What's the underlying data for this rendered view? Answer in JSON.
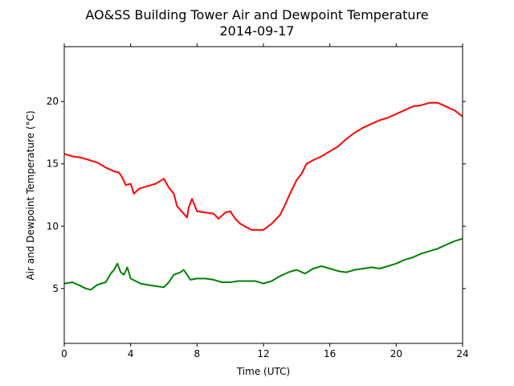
{
  "chart_data": {
    "type": "line",
    "title": "AO&SS Building Tower Air and Dewpoint Temperature",
    "subtitle": "2014-09-17",
    "xlabel": "Time (UTC)",
    "ylabel": "Air and Dewpoint Temperature (°C)",
    "xlim": [
      0,
      24
    ],
    "ylim": [
      0.6,
      24.4
    ],
    "xticks": [
      0,
      4,
      8,
      12,
      16,
      20,
      24
    ],
    "yticks": [
      5,
      10,
      15,
      20
    ],
    "grid": false,
    "legend": "none",
    "series": [
      {
        "color": "#ff0000",
        "x": [
          0,
          0.5,
          1,
          1.5,
          2,
          2.5,
          3,
          3.3,
          3.5,
          3.7,
          4,
          4.2,
          4.5,
          5,
          5.5,
          6,
          6.3,
          6.6,
          6.8,
          7,
          7.2,
          7.4,
          7.5,
          7.7,
          8,
          8.5,
          9,
          9.3,
          9.7,
          10,
          10.3,
          10.6,
          11,
          11.3,
          11.6,
          12,
          12.5,
          13,
          13.3,
          13.6,
          14,
          14.3,
          14.6,
          15,
          15.5,
          16,
          16.5,
          17,
          17.5,
          18,
          18.5,
          19,
          19.5,
          20,
          20.5,
          21,
          21.5,
          22,
          22.5,
          23,
          23.5,
          24
        ],
        "values": [
          15.8,
          15.6,
          15.5,
          15.3,
          15.1,
          14.7,
          14.4,
          14.3,
          13.9,
          13.3,
          13.4,
          12.6,
          13.0,
          13.2,
          13.4,
          13.8,
          13.1,
          12.6,
          11.6,
          11.3,
          11.0,
          10.7,
          11.5,
          12.2,
          11.2,
          11.1,
          11.0,
          10.6,
          11.1,
          11.2,
          10.6,
          10.2,
          9.9,
          9.7,
          9.7,
          9.7,
          10.2,
          10.9,
          11.7,
          12.6,
          13.7,
          14.2,
          15.0,
          15.3,
          15.6,
          16.0,
          16.4,
          17.0,
          17.5,
          17.9,
          18.2,
          18.5,
          18.7,
          19.0,
          19.3,
          19.6,
          19.7,
          19.9,
          19.9,
          19.6,
          19.3,
          18.8
        ]
      },
      {
        "color": "#008000",
        "x": [
          0,
          0.5,
          1,
          1.3,
          1.6,
          2,
          2.5,
          2.8,
          3,
          3.2,
          3.4,
          3.6,
          3.8,
          4,
          4.3,
          4.6,
          5,
          5.5,
          6,
          6.3,
          6.6,
          7,
          7.2,
          7.4,
          7.6,
          8,
          8.5,
          9,
          9.5,
          10,
          10.5,
          11,
          11.5,
          12,
          12.5,
          13,
          13.5,
          14,
          14.5,
          15,
          15.5,
          16,
          16.5,
          17,
          17.5,
          18,
          18.5,
          19,
          19.5,
          20,
          20.5,
          21,
          21.5,
          22,
          22.5,
          23,
          23.5,
          24
        ],
        "values": [
          5.4,
          5.5,
          5.2,
          5.0,
          4.9,
          5.3,
          5.5,
          6.2,
          6.5,
          7.0,
          6.3,
          6.1,
          6.7,
          5.8,
          5.6,
          5.4,
          5.3,
          5.2,
          5.1,
          5.5,
          6.1,
          6.3,
          6.5,
          6.1,
          5.7,
          5.8,
          5.8,
          5.7,
          5.5,
          5.5,
          5.6,
          5.6,
          5.6,
          5.4,
          5.6,
          6.0,
          6.3,
          6.5,
          6.2,
          6.6,
          6.8,
          6.6,
          6.4,
          6.3,
          6.5,
          6.6,
          6.7,
          6.6,
          6.8,
          7.0,
          7.3,
          7.5,
          7.8,
          8.0,
          8.2,
          8.5,
          8.8,
          9.0
        ]
      }
    ]
  }
}
